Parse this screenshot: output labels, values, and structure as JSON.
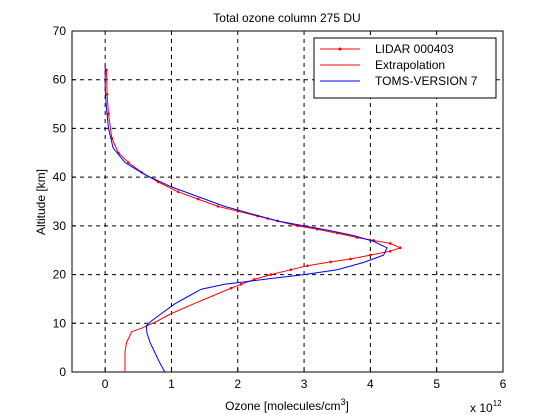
{
  "chart_data": {
    "type": "line",
    "title": "Total ozone column 275 DU",
    "xlabel": "Ozone [molecules/cm",
    "xlabel_sup": "3",
    "xlabel_end": "]",
    "x_exponent_base": "x 10",
    "x_exponent_power": "12",
    "ylabel": "Altitude [km]",
    "xlim": [
      -0.5,
      6
    ],
    "ylim": [
      0,
      70
    ],
    "xticks": [
      0,
      1,
      2,
      3,
      4,
      5,
      6
    ],
    "yticks": [
      0,
      10,
      20,
      30,
      40,
      50,
      60,
      70
    ],
    "grid": true,
    "legend_position": "top-right",
    "series": [
      {
        "name": "LIDAR 000403",
        "color": "#ff0000",
        "marker": "dot",
        "points": [
          [
            0.02,
            62
          ],
          [
            0.03,
            57
          ],
          [
            0.05,
            53
          ],
          [
            0.1,
            48
          ],
          [
            0.2,
            45
          ],
          [
            0.35,
            43
          ],
          [
            0.55,
            41
          ],
          [
            0.8,
            39
          ],
          [
            1.1,
            37
          ],
          [
            1.4,
            35.5
          ],
          [
            1.7,
            34
          ],
          [
            2.0,
            33
          ],
          [
            2.3,
            32
          ],
          [
            2.45,
            31.5
          ],
          [
            2.6,
            31
          ],
          [
            2.9,
            30
          ],
          [
            3.2,
            29.3
          ],
          [
            3.5,
            28.5
          ],
          [
            3.8,
            27.6
          ],
          [
            4.05,
            27
          ],
          [
            4.3,
            26.4
          ],
          [
            4.45,
            25.5
          ],
          [
            4.3,
            24.8
          ],
          [
            4.0,
            24
          ],
          [
            3.7,
            23.2
          ],
          [
            3.4,
            22.6
          ],
          [
            3.05,
            21.8
          ],
          [
            2.8,
            21
          ],
          [
            2.5,
            20
          ],
          [
            2.25,
            19
          ],
          [
            2.05,
            18
          ],
          [
            1.9,
            17.2
          ]
        ]
      },
      {
        "name": "Extrapolation",
        "color": "#ff0000",
        "marker": "none",
        "points": [
          [
            1.9,
            17.2
          ],
          [
            1.6,
            15.5
          ],
          [
            1.3,
            13.8
          ],
          [
            1.0,
            12
          ],
          [
            0.75,
            10.2
          ],
          [
            0.55,
            9
          ],
          [
            0.4,
            8.3
          ],
          [
            0.32,
            6
          ],
          [
            0.3,
            4
          ],
          [
            0.3,
            0
          ]
        ]
      },
      {
        "name": "TOMS-VERSION 7",
        "color": "#0000ff",
        "marker": "none",
        "points": [
          [
            0.0,
            63
          ],
          [
            0.0,
            58
          ],
          [
            0.02,
            54
          ],
          [
            0.05,
            50
          ],
          [
            0.12,
            46
          ],
          [
            0.3,
            43
          ],
          [
            0.6,
            40.5
          ],
          [
            1.0,
            38
          ],
          [
            1.4,
            36
          ],
          [
            1.8,
            34
          ],
          [
            2.2,
            32.5
          ],
          [
            2.6,
            31
          ],
          [
            3.0,
            30
          ],
          [
            3.4,
            29
          ],
          [
            3.75,
            28
          ],
          [
            4.05,
            26.8
          ],
          [
            4.25,
            25.5
          ],
          [
            4.2,
            24
          ],
          [
            3.9,
            22.5
          ],
          [
            3.5,
            21
          ],
          [
            3.0,
            20
          ],
          [
            2.5,
            19.2
          ],
          [
            2.1,
            18.5
          ],
          [
            1.8,
            18
          ],
          [
            1.45,
            17
          ],
          [
            1.25,
            15.5
          ],
          [
            1.05,
            14
          ],
          [
            0.85,
            12
          ],
          [
            0.7,
            10.5
          ],
          [
            0.62,
            9.5
          ],
          [
            0.63,
            8
          ],
          [
            0.68,
            6
          ],
          [
            0.75,
            4
          ],
          [
            0.82,
            2
          ],
          [
            0.9,
            0
          ]
        ]
      }
    ]
  }
}
